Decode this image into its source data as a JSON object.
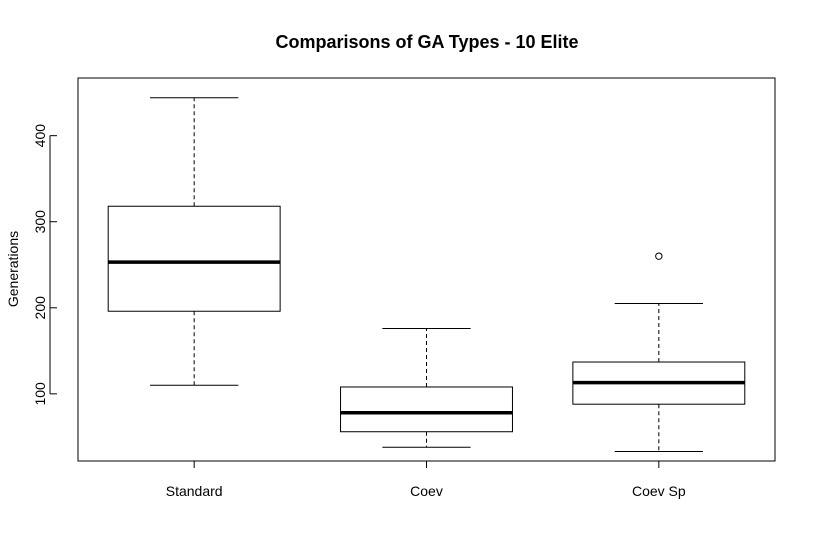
{
  "chart_data": {
    "type": "box",
    "title": "Comparisons of GA Types - 10 Elite",
    "xlabel": "",
    "ylabel": "Generations",
    "ylim": [
      22,
      467
    ],
    "yticks": [
      100,
      200,
      300,
      400
    ],
    "categories": [
      "Standard",
      "Coev",
      "Coev Sp"
    ],
    "boxes": [
      {
        "category": "Standard",
        "whisker_low": 110,
        "q1": 196,
        "median": 253,
        "q3": 318,
        "whisker_high": 444,
        "outliers": []
      },
      {
        "category": "Coev",
        "whisker_low": 38,
        "q1": 56,
        "median": 78,
        "q3": 108,
        "whisker_high": 176,
        "outliers": []
      },
      {
        "category": "Coev Sp",
        "whisker_low": 33,
        "q1": 88,
        "median": 113,
        "q3": 137,
        "whisker_high": 205,
        "outliers": [
          260
        ]
      }
    ],
    "grid": false,
    "legend": "none"
  }
}
